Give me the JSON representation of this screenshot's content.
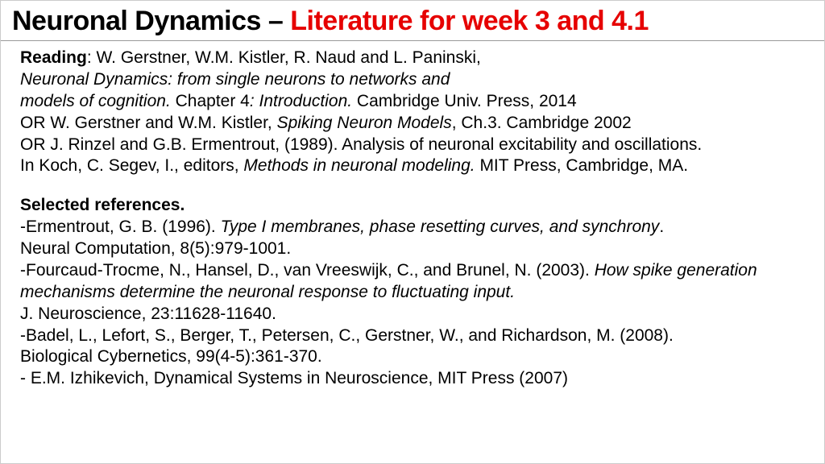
{
  "header": {
    "black": "Neuronal Dynamics – ",
    "red": " Literature for week 3 and 4.1"
  },
  "reading": {
    "label": "Reading",
    "line1_rest": ": W. Gerstner, W.M. Kistler, R. Naud and L. Paninski,",
    "line2_italic": "Neuronal Dynamics: from single neurons to networks and",
    "line3_italic_a": "models of cognition. ",
    "line3_plain_a": "Chapter 4",
    "line3_italic_b": ": Introduction.",
    "line3_plain_b": "  Cambridge Univ. Press, 2014",
    "line4_a": "OR W. Gerstner and W.M. Kistler, ",
    "line4_italic": "Spiking Neuron Models",
    "line4_b": ", Ch.3. Cambridge 2002",
    "line5": "OR J. Rinzel and G.B. Ermentrout,  (1989). Analysis of neuronal excitability and oscillations.",
    "line6_a": "In Koch, C. Segev, I., editors, ",
    "line6_italic": "Methods in neuronal modeling.",
    "line6_b": " MIT Press, Cambridge, MA."
  },
  "refs": {
    "heading": "Selected references.",
    "r1_a": "-Ermentrout, G. B. (1996). ",
    "r1_italic": "Type I membranes, phase resetting curves, and synchrony",
    "r1_b": ".",
    "r1_c": "Neural Computation, 8(5):979-1001.",
    "r2_a": "-Fourcaud-Trocme, N., Hansel, D., van Vreeswijk, C., and Brunel, N. (2003). ",
    "r2_italic": "How spike generation mechanisms determine the neuronal response to fluctuating input.",
    "r2_c": "J. Neuroscience, 23:11628-11640.",
    "r3_a": "-Badel, L., Lefort, S., Berger, T., Petersen, C., Gerstner, W., and Richardson, M. (2008).",
    "r3_b": "Biological Cybernetics,  99(4-5):361-370.",
    "r4": "- E.M. Izhikevich, Dynamical Systems in Neuroscience, MIT Press (2007)"
  },
  "colors": {
    "title_red": "#e60000",
    "title_black": "#000000",
    "text": "#000000",
    "divider": "#999999",
    "background": "#ffffff"
  },
  "typography": {
    "title_fontsize": 34,
    "title_weight": 900,
    "body_fontsize": 21,
    "body_lineheight": 1.28
  }
}
